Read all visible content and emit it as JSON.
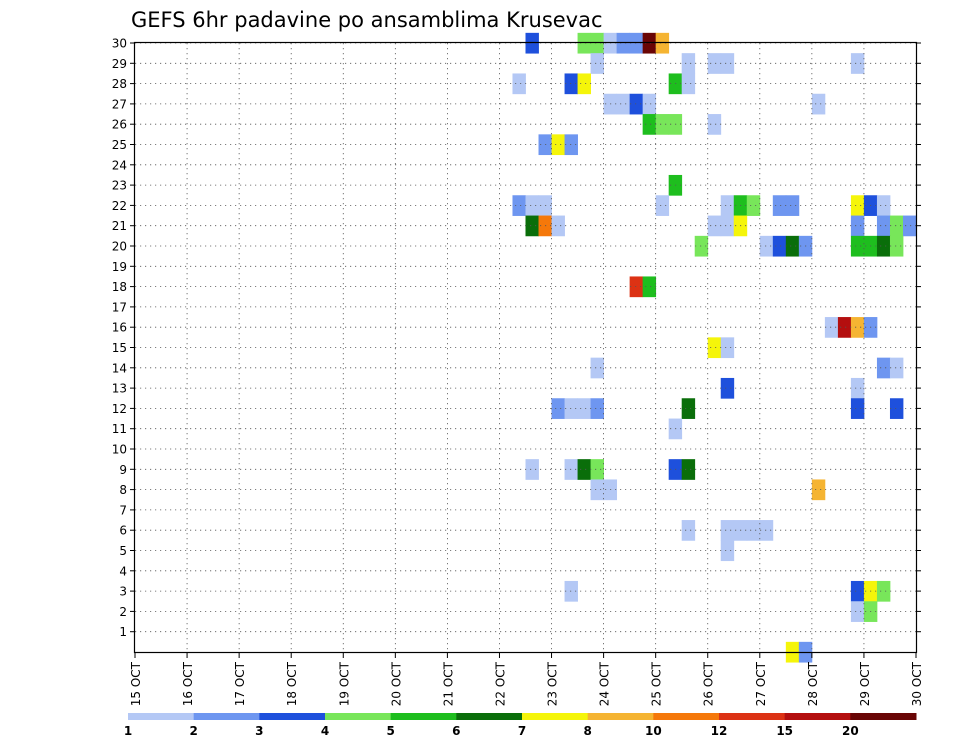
{
  "chart_data": {
    "type": "heatmap",
    "title": "GEFS 6hr padavine po ansamblima Krusevac",
    "x_labels": [
      "15 OCT",
      "16 OCT",
      "17 OCT",
      "18 OCT",
      "19 OCT",
      "20 OCT",
      "21 OCT",
      "22 OCT",
      "23 OCT",
      "24 OCT",
      "25 OCT",
      "26 OCT",
      "27 OCT",
      "28 OCT",
      "29 OCT",
      "30 OCT"
    ],
    "y_labels": [
      "1",
      "2",
      "3",
      "4",
      "5",
      "6",
      "7",
      "8",
      "9",
      "10",
      "11",
      "12",
      "13",
      "14",
      "15",
      "16",
      "17",
      "18",
      "19",
      "20",
      "21",
      "22",
      "23",
      "24",
      "25",
      "26",
      "27",
      "28",
      "29",
      "30"
    ],
    "xlim": [
      0,
      60
    ],
    "ylim": [
      0,
      30
    ],
    "grid": true,
    "color_levels": [
      {
        "label": "1",
        "color": "#b4c8f5"
      },
      {
        "label": "2",
        "color": "#6e96f0"
      },
      {
        "label": "3",
        "color": "#1e50dc"
      },
      {
        "label": "4",
        "color": "#78e65a"
      },
      {
        "label": "5",
        "color": "#1ebe1e"
      },
      {
        "label": "6",
        "color": "#0a6e0a"
      },
      {
        "label": "7",
        "color": "#f5f50a"
      },
      {
        "label": "8",
        "color": "#f5b432"
      },
      {
        "label": "10",
        "color": "#f5780a"
      },
      {
        "label": "12",
        "color": "#dc3214"
      },
      {
        "label": "15",
        "color": "#b40f0f"
      },
      {
        "label": "20",
        "color": "#690505"
      }
    ],
    "cells": [
      [
        30,
        30,
        2
      ],
      [
        30,
        34,
        3
      ],
      [
        30,
        35,
        3
      ],
      [
        30,
        36,
        0
      ],
      [
        30,
        37,
        1
      ],
      [
        30,
        38,
        1
      ],
      [
        30,
        39,
        11
      ],
      [
        30,
        40,
        7
      ],
      [
        29,
        35,
        0
      ],
      [
        29,
        42,
        0
      ],
      [
        29,
        44,
        0
      ],
      [
        29,
        45,
        0
      ],
      [
        29,
        55,
        0
      ],
      [
        28,
        29,
        0
      ],
      [
        28,
        33,
        2
      ],
      [
        28,
        34,
        6
      ],
      [
        28,
        41,
        4
      ],
      [
        28,
        42,
        0
      ],
      [
        27,
        36,
        0
      ],
      [
        27,
        37,
        0
      ],
      [
        27,
        38,
        2
      ],
      [
        27,
        39,
        0
      ],
      [
        27,
        52,
        0
      ],
      [
        26,
        39,
        4
      ],
      [
        26,
        40,
        3
      ],
      [
        26,
        41,
        3
      ],
      [
        26,
        44,
        0
      ],
      [
        25,
        31,
        1
      ],
      [
        25,
        32,
        6
      ],
      [
        25,
        33,
        1
      ],
      [
        23,
        41,
        4
      ],
      [
        22,
        29,
        1
      ],
      [
        22,
        30,
        0
      ],
      [
        22,
        31,
        0
      ],
      [
        22,
        40,
        0
      ],
      [
        22,
        45,
        0
      ],
      [
        22,
        46,
        4
      ],
      [
        22,
        47,
        3
      ],
      [
        22,
        49,
        1
      ],
      [
        22,
        50,
        1
      ],
      [
        22,
        55,
        6
      ],
      [
        22,
        56,
        2
      ],
      [
        22,
        57,
        0
      ],
      [
        21,
        30,
        5
      ],
      [
        21,
        31,
        8
      ],
      [
        21,
        32,
        0
      ],
      [
        21,
        44,
        0
      ],
      [
        21,
        45,
        0
      ],
      [
        21,
        46,
        6
      ],
      [
        21,
        55,
        1
      ],
      [
        21,
        57,
        1
      ],
      [
        21,
        58,
        3
      ],
      [
        21,
        59,
        1
      ],
      [
        20,
        43,
        3
      ],
      [
        20,
        48,
        0
      ],
      [
        20,
        49,
        2
      ],
      [
        20,
        50,
        5
      ],
      [
        20,
        51,
        1
      ],
      [
        20,
        55,
        4
      ],
      [
        20,
        56,
        4
      ],
      [
        20,
        57,
        5
      ],
      [
        20,
        58,
        3
      ],
      [
        18,
        38,
        9
      ],
      [
        18,
        39,
        4
      ],
      [
        16,
        53,
        0
      ],
      [
        16,
        54,
        10
      ],
      [
        16,
        55,
        7
      ],
      [
        16,
        56,
        1
      ],
      [
        15,
        44,
        6
      ],
      [
        15,
        45,
        0
      ],
      [
        14,
        35,
        0
      ],
      [
        14,
        57,
        1
      ],
      [
        14,
        58,
        0
      ],
      [
        13,
        45,
        2
      ],
      [
        13,
        55,
        0
      ],
      [
        12,
        32,
        1
      ],
      [
        12,
        33,
        0
      ],
      [
        12,
        34,
        0
      ],
      [
        12,
        35,
        1
      ],
      [
        12,
        42,
        5
      ],
      [
        12,
        55,
        2
      ],
      [
        12,
        58,
        2
      ],
      [
        11,
        41,
        0
      ],
      [
        9,
        30,
        0
      ],
      [
        9,
        33,
        0
      ],
      [
        9,
        34,
        5
      ],
      [
        9,
        35,
        3
      ],
      [
        9,
        41,
        2
      ],
      [
        9,
        42,
        5
      ],
      [
        8,
        35,
        0
      ],
      [
        8,
        36,
        0
      ],
      [
        8,
        52,
        7
      ],
      [
        6,
        42,
        0
      ],
      [
        6,
        45,
        0
      ],
      [
        6,
        46,
        0
      ],
      [
        6,
        47,
        0
      ],
      [
        6,
        48,
        0
      ],
      [
        5,
        45,
        0
      ],
      [
        3,
        33,
        0
      ],
      [
        3,
        55,
        2
      ],
      [
        3,
        56,
        6
      ],
      [
        3,
        57,
        3
      ],
      [
        2,
        55,
        0
      ],
      [
        2,
        56,
        3
      ],
      [
        0,
        50,
        6
      ],
      [
        0,
        51,
        1
      ]
    ]
  }
}
